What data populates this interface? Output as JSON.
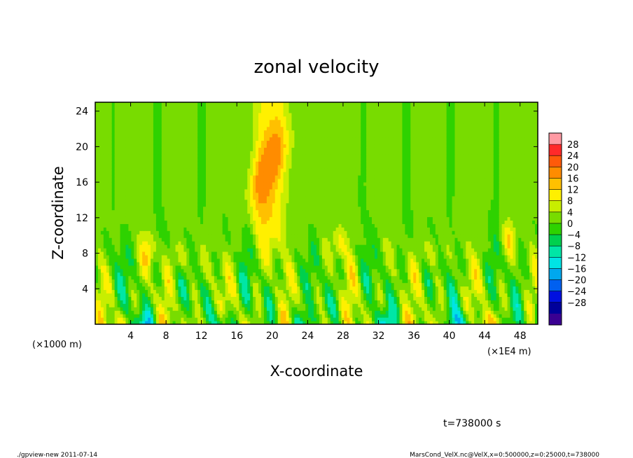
{
  "chart_data": {
    "type": "heatmap",
    "title": "zonal velocity",
    "xlabel": "X-coordinate",
    "ylabel": "Z-coordinate",
    "x_unit": "(×1E4 m)",
    "y_unit": "(×1000 m)",
    "xlim": [
      0,
      50
    ],
    "ylim": [
      0,
      25
    ],
    "x_ticks": [
      "4",
      "8",
      "12",
      "16",
      "20",
      "24",
      "28",
      "32",
      "36",
      "40",
      "44",
      "48"
    ],
    "y_ticks": [
      "4",
      "8",
      "12",
      "16",
      "20",
      "24"
    ],
    "colorbar": {
      "labels": [
        "28",
        "24",
        "20",
        "16",
        "12",
        "8",
        "4",
        "0",
        "−4",
        "−8",
        "−12",
        "−16",
        "−20",
        "−24",
        "−28"
      ],
      "colors": [
        "#FF9AA3",
        "#FF2A2A",
        "#FF5A0A",
        "#FF8C00",
        "#FFC000",
        "#FFF000",
        "#C8EE00",
        "#78DC00",
        "#2ED200",
        "#00D04E",
        "#00E6A6",
        "#00E4E4",
        "#00A8EE",
        "#0060F0",
        "#0010E0",
        "#00009A",
        "#3A0092"
      ]
    },
    "data_description_values": {
      "background_value": 1,
      "hot_core": {
        "x_range": [
          17,
          22
        ],
        "z_range": [
          12,
          25
        ],
        "peak": 15
      },
      "peak_value": 18,
      "min_value": -18
    }
  },
  "footer": {
    "time_label": "t=738000 s",
    "left_note": "./gpview-new   2011-07-14",
    "right_note": "MarsCond_VelX.nc@VelX,x=0:500000,z=0:25000,t=738000"
  }
}
